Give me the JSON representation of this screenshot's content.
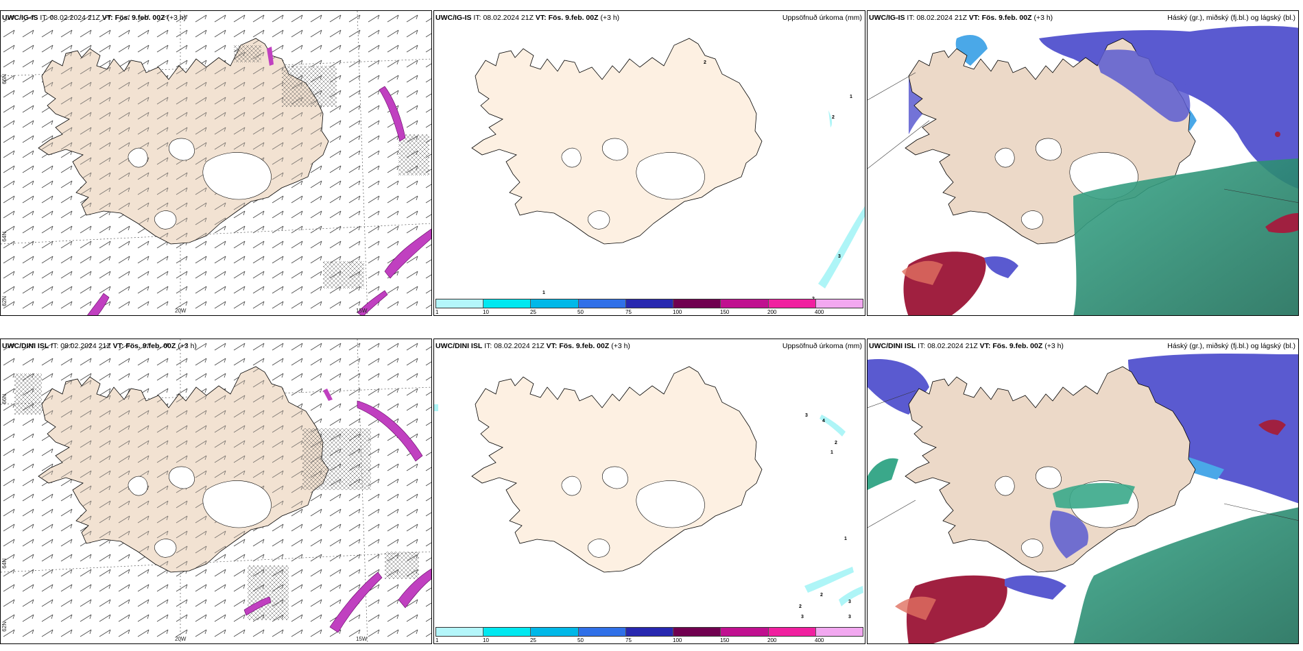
{
  "colors": {
    "land": "#f7e8d8",
    "coast": "#000000",
    "barb": "#444444",
    "grid": "#555555",
    "precip_light": "#aef5f7",
    "purple_precip": "#c040c0",
    "low_cloud": "#5a5ad0",
    "mid_cloud": "#4aa8e8",
    "high_cloud": "#2a9a7a",
    "red_cloud": "#a02040"
  },
  "colorbar": {
    "ticks": [
      "1",
      "10",
      "25",
      "50",
      "75",
      "100",
      "150",
      "200",
      "400"
    ],
    "colors": [
      "#b4f6fa",
      "#00e8f0",
      "#00b8e8",
      "#3070e8",
      "#2828b0",
      "#700050",
      "#c01090",
      "#f020a0",
      "#f2a8f0"
    ]
  },
  "rows": [
    {
      "model": "UWC/IG-IS",
      "it_label": "IT:",
      "it_value": "08.02.2024 21Z",
      "vt_label": "VT:",
      "vt_value": "Fös. 9.feb. 00Z",
      "lead": "(+3 h)",
      "numbers_precip": [
        "2",
        "1",
        "2",
        "3",
        "2",
        "1"
      ]
    },
    {
      "model": "UWC/DINI ISL",
      "it_label": "IT:",
      "it_value": "08.02.2024 21Z",
      "vt_label": "VT:",
      "vt_value": "Fös. 9.feb. 00Z",
      "lead": "(+3 h)",
      "numbers_precip": [
        "3",
        "4",
        "2",
        "1",
        "1",
        "2",
        "2",
        "3",
        "3",
        "3"
      ]
    }
  ],
  "titles": {
    "precip": "Uppsöfnuð úrkoma (mm)",
    "clouds": "Háský (gr.), miðský (fj.bl.) og lágský (bl.)"
  },
  "axes": {
    "lat_66": "66N",
    "lat_64": "64N",
    "lat_62": "62N",
    "lon_20": "20W",
    "lon_15": "15W"
  }
}
